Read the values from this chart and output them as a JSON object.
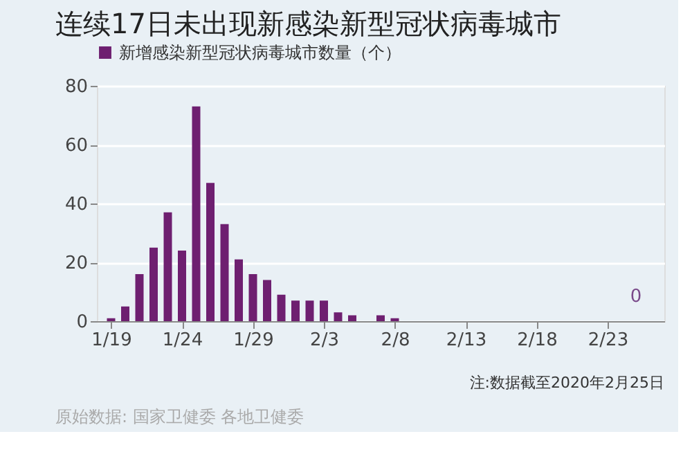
{
  "chart_data": {
    "type": "bar",
    "title": "连续17日未出现新感染新型冠状病毒城市",
    "x": [
      "2020-01-19",
      "2020-01-20",
      "2020-01-21",
      "2020-01-22",
      "2020-01-23",
      "2020-01-24",
      "2020-01-25",
      "2020-01-26",
      "2020-01-27",
      "2020-01-28",
      "2020-01-29",
      "2020-01-30",
      "2020-01-31",
      "2020-02-01",
      "2020-02-02",
      "2020-02-03",
      "2020-02-04",
      "2020-02-05",
      "2020-02-06",
      "2020-02-07",
      "2020-02-08",
      "2020-02-09",
      "2020-02-10",
      "2020-02-11",
      "2020-02-12",
      "2020-02-13",
      "2020-02-14",
      "2020-02-15",
      "2020-02-16",
      "2020-02-17",
      "2020-02-18",
      "2020-02-19",
      "2020-02-20",
      "2020-02-21",
      "2020-02-22",
      "2020-02-23",
      "2020-02-24",
      "2020-02-25"
    ],
    "series": [
      {
        "name": "新增感染新型冠状病毒城市数量（个）",
        "color": "#6e1f70",
        "values": [
          1,
          5,
          16,
          25,
          37,
          24,
          73,
          47,
          33,
          21,
          16,
          14,
          9,
          7,
          7,
          7,
          3,
          2,
          0,
          2,
          1,
          0,
          0,
          0,
          0,
          0,
          0,
          0,
          0,
          0,
          0,
          0,
          0,
          0,
          0,
          0,
          0,
          0
        ]
      }
    ],
    "xlim": [
      "2020-01-18",
      "2020-02-27"
    ],
    "xticks": [
      {
        "value": "2020-01-19",
        "label": "1/19"
      },
      {
        "value": "2020-01-24",
        "label": "1/24"
      },
      {
        "value": "2020-01-29",
        "label": "1/29"
      },
      {
        "value": "2020-02-03",
        "label": "2/3"
      },
      {
        "value": "2020-02-08",
        "label": "2/8"
      },
      {
        "value": "2020-02-13",
        "label": "2/13"
      },
      {
        "value": "2020-02-18",
        "label": "2/18"
      },
      {
        "value": "2020-02-23",
        "label": "2/23"
      }
    ],
    "ylim": [
      0,
      80
    ],
    "yticks": [
      0,
      20,
      40,
      60,
      80
    ],
    "grid": "y",
    "legend": "top left",
    "annotations": [
      {
        "text": "0",
        "x": "2020-02-25",
        "y": 0
      },
      "注:数据截至2020年2月25日",
      "原始数据: 国家卫健委 各地卫健委"
    ]
  }
}
